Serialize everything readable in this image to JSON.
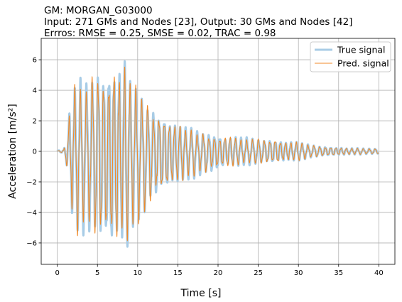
{
  "chart_data": {
    "type": "line",
    "title_lines": [
      "GM: MORGAN_G03000",
      "Input: 271 GMs and Nodes [23], Output: 30 GMs and Nodes [42]",
      "Errros: RMSE = 0.25, SMSE = 0.02, TRAC = 0.98"
    ],
    "xlabel": "Time [s]",
    "ylabel": "Acceleration [m/s²]",
    "xlim": [
      -2,
      42
    ],
    "ylim": [
      -7.4,
      7.4
    ],
    "xticks": [
      0,
      5,
      10,
      15,
      20,
      25,
      30,
      35,
      40
    ],
    "yticks": [
      -6,
      -4,
      -2,
      0,
      2,
      4,
      6
    ],
    "grid": true,
    "legend_position": "top-right",
    "series": [
      {
        "name": "True signal",
        "color": "#a8cce6",
        "style": "thick"
      },
      {
        "name": "Pred. signal",
        "color": "#f08a28",
        "style": "thin"
      }
    ],
    "envelope": {
      "description_of_values": "approximate peak acceleration of the oscillation over time",
      "t": [
        0,
        0.8,
        1.0,
        1.3,
        1.6,
        2.0,
        2.5,
        3.0,
        3.5,
        4.0,
        5.0,
        6.0,
        6.8,
        7.2,
        7.8,
        8.5,
        9.5,
        10.5,
        11.5,
        12.5,
        13.5,
        15,
        17,
        19,
        21,
        23,
        25,
        27,
        29,
        30,
        31,
        32,
        34,
        36,
        38,
        40
      ],
      "pos": [
        0.05,
        0.1,
        0.6,
        1.4,
        2.7,
        3.4,
        5.2,
        4.3,
        4.2,
        4.5,
        4.8,
        4.7,
        5.9,
        5.6,
        5.7,
        5.5,
        4.5,
        3.3,
        2.8,
        2.4,
        2.1,
        1.7,
        1.3,
        1.0,
        0.95,
        0.85,
        0.8,
        0.75,
        0.6,
        0.55,
        0.5,
        0.35,
        0.25,
        0.2,
        0.2,
        0.15
      ],
      "neg": [
        -0.05,
        -0.1,
        -0.5,
        -1.4,
        -2.2,
        -4.6,
        -5.0,
        -5.3,
        -5.0,
        -5.1,
        -5.2,
        -5.6,
        -6.6,
        -6.2,
        -6.3,
        -5.9,
        -5.2,
        -4.2,
        -3.3,
        -2.8,
        -2.4,
        -2.0,
        -1.6,
        -1.3,
        -1.0,
        -0.85,
        -0.8,
        -0.75,
        -0.6,
        -0.55,
        -0.5,
        -0.35,
        -0.25,
        -0.2,
        -0.2,
        -0.15
      ]
    }
  }
}
